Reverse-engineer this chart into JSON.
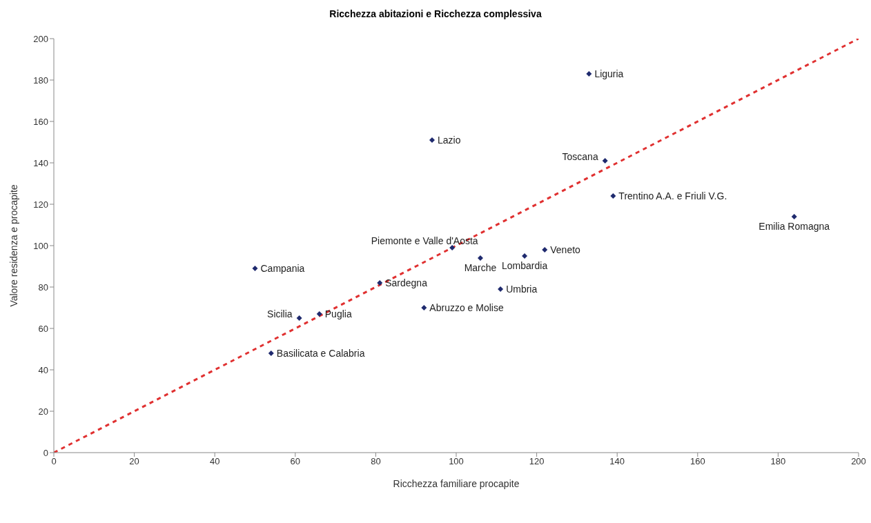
{
  "chart_data": {
    "type": "scatter",
    "title": "Ricchezza abitazioni e Ricchezza complessiva",
    "xlabel": "Ricchezza familiare procapite",
    "ylabel": "Valore residenza e procapite",
    "xlim": [
      0,
      200
    ],
    "ylim": [
      0,
      200
    ],
    "xticks": [
      0,
      20,
      40,
      60,
      80,
      100,
      120,
      140,
      160,
      180,
      200
    ],
    "yticks": [
      0,
      20,
      40,
      60,
      80,
      100,
      120,
      140,
      160,
      180,
      200
    ],
    "grid": false,
    "legend": false,
    "series": [
      {
        "marker": "diamond",
        "color": "#1f2a6e",
        "x": [
          133,
          94,
          137,
          139,
          184,
          99,
          106,
          117,
          122,
          50,
          81,
          111,
          92,
          61,
          66,
          54
        ],
        "values": [
          183,
          151,
          141,
          124,
          114,
          99,
          94,
          95,
          98,
          89,
          82,
          79,
          70,
          65,
          67,
          48
        ]
      },
      {
        "type": "line",
        "color": "#e03030",
        "line_style": "dashed",
        "x": [
          0,
          200
        ],
        "values": [
          0,
          200
        ]
      }
    ],
    "annotations": [
      {
        "text": "Liguria",
        "x": 133,
        "y": 183
      },
      {
        "text": "Lazio",
        "x": 94,
        "y": 151
      },
      {
        "text": "Toscana",
        "x": 137,
        "y": 141
      },
      {
        "text": "Trentino A.A. e Friuli V.G.",
        "x": 139,
        "y": 124
      },
      {
        "text": "Emilia Romagna",
        "x": 184,
        "y": 114
      },
      {
        "text": "Piemonte e Valle d'Aosta",
        "x": 99,
        "y": 99
      },
      {
        "text": "Marche",
        "x": 106,
        "y": 94
      },
      {
        "text": "Lombardia",
        "x": 117,
        "y": 95
      },
      {
        "text": "Veneto",
        "x": 122,
        "y": 98
      },
      {
        "text": "Campania",
        "x": 50,
        "y": 89
      },
      {
        "text": "Sardegna",
        "x": 81,
        "y": 82
      },
      {
        "text": "Umbria",
        "x": 111,
        "y": 79
      },
      {
        "text": "Abruzzo e Molise",
        "x": 92,
        "y": 70
      },
      {
        "text": "Sicilia",
        "x": 61,
        "y": 65
      },
      {
        "text": "Puglia",
        "x": 66,
        "y": 67
      },
      {
        "text": "Basilicata e Calabria",
        "x": 54,
        "y": 48
      }
    ]
  }
}
